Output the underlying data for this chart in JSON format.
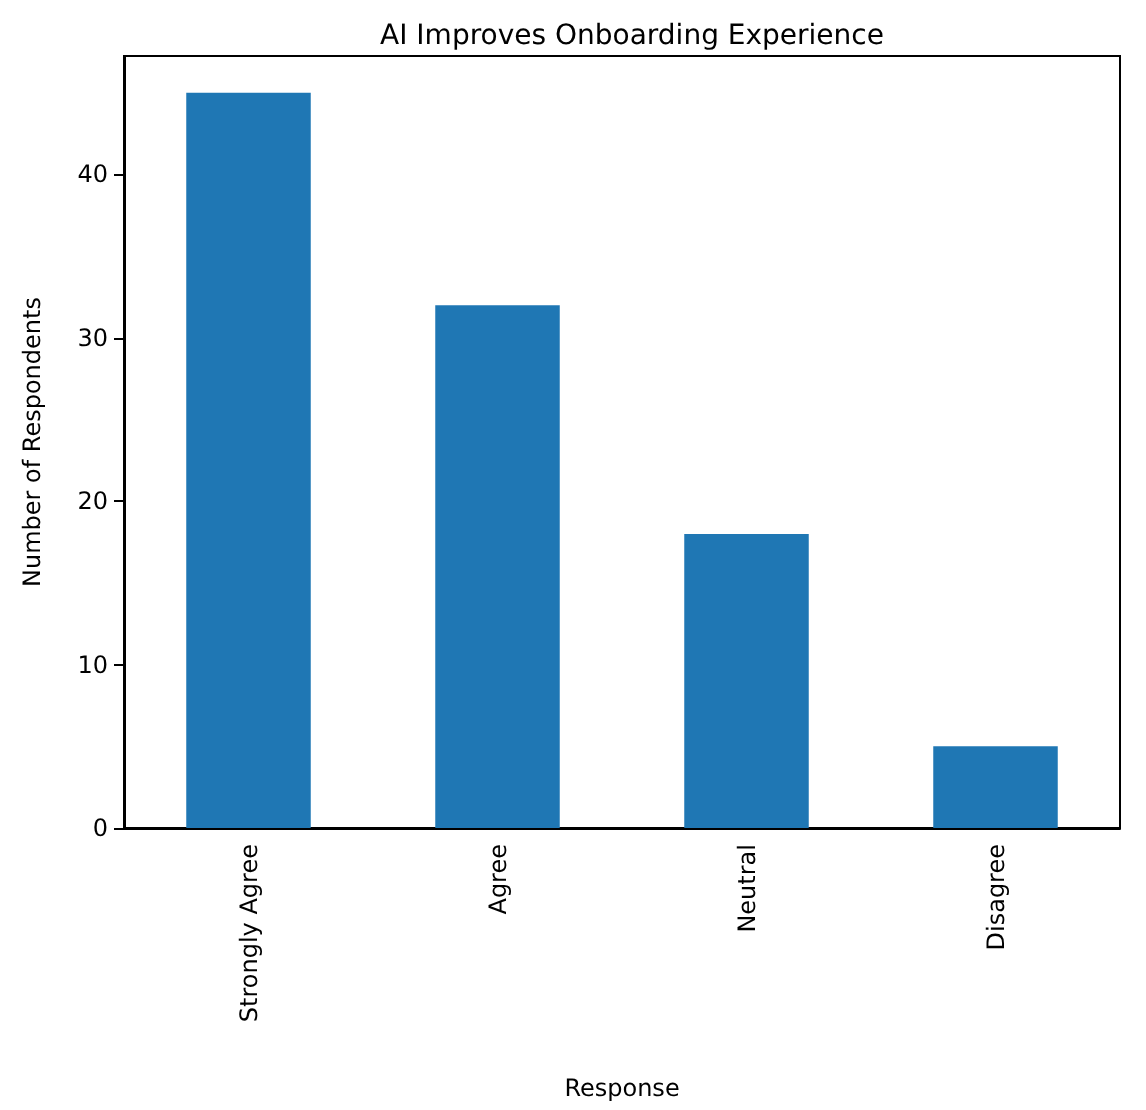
{
  "chart_data": {
    "type": "bar",
    "title": "AI Improves Onboarding Experience",
    "xlabel": "Response",
    "ylabel": "Number of Respondents",
    "categories": [
      "Strongly Agree",
      "Agree",
      "Neutral",
      "Disagree"
    ],
    "values": [
      45,
      32,
      18,
      5
    ],
    "color": "#1f77b4",
    "ylim": [
      0,
      47.25
    ],
    "yticks": [
      0,
      10,
      20,
      30,
      40
    ],
    "grid": false
  }
}
